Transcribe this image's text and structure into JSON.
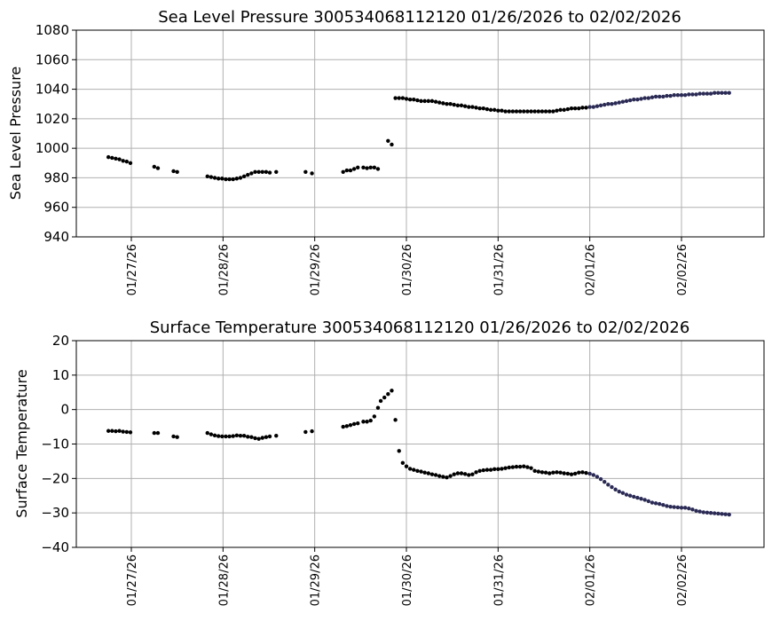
{
  "chart_data": [
    {
      "type": "scatter",
      "title": "Sea Level Pressure 300534068112120  01/26/2026 to 02/02/2026",
      "ylabel": "Sea Level Pressure",
      "xlabel": "",
      "x_unit": "days since 01/27/26 00:00",
      "xlim": [
        -0.6,
        6.9
      ],
      "ylim": [
        940,
        1080
      ],
      "yticks": [
        940,
        960,
        980,
        1000,
        1020,
        1040,
        1060,
        1080
      ],
      "xtick_labels": [
        "01/27/26",
        "01/28/26",
        "01/29/26",
        "01/30/26",
        "01/31/26",
        "02/01/26",
        "02/02/26"
      ],
      "grid": true,
      "marker_color": "#000000",
      "marker_color_late": "#2a2a55",
      "late_from_x": 5.0,
      "points": [
        [
          -0.25,
          994
        ],
        [
          -0.21,
          993.5
        ],
        [
          -0.17,
          993
        ],
        [
          -0.13,
          992.5
        ],
        [
          -0.09,
          991.5
        ],
        [
          -0.05,
          991
        ],
        [
          -0.01,
          990
        ],
        [
          0.25,
          987.5
        ],
        [
          0.29,
          986.5
        ],
        [
          0.46,
          984.5
        ],
        [
          0.5,
          984
        ],
        [
          0.83,
          981
        ],
        [
          0.87,
          980.5
        ],
        [
          0.91,
          980
        ],
        [
          0.95,
          979.5
        ],
        [
          0.99,
          979.5
        ],
        [
          1.03,
          979
        ],
        [
          1.07,
          979
        ],
        [
          1.11,
          979
        ],
        [
          1.15,
          979.5
        ],
        [
          1.19,
          980
        ],
        [
          1.23,
          981
        ],
        [
          1.27,
          982
        ],
        [
          1.31,
          983
        ],
        [
          1.35,
          984
        ],
        [
          1.39,
          984
        ],
        [
          1.43,
          984
        ],
        [
          1.47,
          984
        ],
        [
          1.51,
          983.5
        ],
        [
          1.58,
          984
        ],
        [
          1.9,
          984
        ],
        [
          1.97,
          983
        ],
        [
          2.31,
          984
        ],
        [
          2.35,
          985
        ],
        [
          2.39,
          985
        ],
        [
          2.43,
          986
        ],
        [
          2.47,
          987
        ],
        [
          2.53,
          987
        ],
        [
          2.57,
          986.5
        ],
        [
          2.61,
          987
        ],
        [
          2.65,
          987
        ],
        [
          2.69,
          986
        ],
        [
          2.8,
          1005
        ],
        [
          2.84,
          1002.5
        ],
        [
          2.88,
          1034
        ],
        [
          2.92,
          1034
        ],
        [
          2.96,
          1034
        ],
        [
          3.0,
          1033.5
        ],
        [
          3.04,
          1033
        ],
        [
          3.08,
          1033
        ],
        [
          3.12,
          1032.5
        ],
        [
          3.16,
          1032
        ],
        [
          3.2,
          1032
        ],
        [
          3.24,
          1032
        ],
        [
          3.28,
          1032
        ],
        [
          3.32,
          1031.5
        ],
        [
          3.36,
          1031
        ],
        [
          3.4,
          1030.5
        ],
        [
          3.44,
          1030
        ],
        [
          3.48,
          1030
        ],
        [
          3.52,
          1029.5
        ],
        [
          3.56,
          1029
        ],
        [
          3.6,
          1029
        ],
        [
          3.64,
          1028.5
        ],
        [
          3.68,
          1028
        ],
        [
          3.72,
          1028
        ],
        [
          3.76,
          1027.5
        ],
        [
          3.8,
          1027
        ],
        [
          3.84,
          1027
        ],
        [
          3.88,
          1026.5
        ],
        [
          3.92,
          1026
        ],
        [
          3.96,
          1026
        ],
        [
          4.0,
          1025.5
        ],
        [
          4.04,
          1025.5
        ],
        [
          4.08,
          1025
        ],
        [
          4.12,
          1025
        ],
        [
          4.16,
          1025
        ],
        [
          4.2,
          1025
        ],
        [
          4.24,
          1025
        ],
        [
          4.28,
          1025
        ],
        [
          4.32,
          1025
        ],
        [
          4.36,
          1025
        ],
        [
          4.4,
          1025
        ],
        [
          4.44,
          1025
        ],
        [
          4.48,
          1025
        ],
        [
          4.52,
          1025
        ],
        [
          4.56,
          1025
        ],
        [
          4.6,
          1025
        ],
        [
          4.64,
          1025.5
        ],
        [
          4.68,
          1026
        ],
        [
          4.72,
          1026
        ],
        [
          4.76,
          1026.5
        ],
        [
          4.8,
          1027
        ],
        [
          4.84,
          1027
        ],
        [
          4.88,
          1027
        ],
        [
          4.92,
          1027.5
        ],
        [
          4.96,
          1027.5
        ],
        [
          5.0,
          1028
        ],
        [
          5.04,
          1028
        ],
        [
          5.08,
          1028.5
        ],
        [
          5.12,
          1029
        ],
        [
          5.16,
          1029.5
        ],
        [
          5.2,
          1030
        ],
        [
          5.24,
          1030
        ],
        [
          5.28,
          1030.5
        ],
        [
          5.32,
          1031
        ],
        [
          5.36,
          1031.5
        ],
        [
          5.4,
          1032
        ],
        [
          5.44,
          1032.5
        ],
        [
          5.48,
          1033
        ],
        [
          5.52,
          1033
        ],
        [
          5.56,
          1033.5
        ],
        [
          5.6,
          1034
        ],
        [
          5.64,
          1034
        ],
        [
          5.68,
          1034.5
        ],
        [
          5.72,
          1035
        ],
        [
          5.76,
          1035
        ],
        [
          5.8,
          1035
        ],
        [
          5.84,
          1035.5
        ],
        [
          5.88,
          1035.5
        ],
        [
          5.92,
          1036
        ],
        [
          5.96,
          1036
        ],
        [
          6.0,
          1036
        ],
        [
          6.04,
          1036
        ],
        [
          6.08,
          1036.5
        ],
        [
          6.12,
          1036.5
        ],
        [
          6.16,
          1036.5
        ],
        [
          6.2,
          1037
        ],
        [
          6.24,
          1037
        ],
        [
          6.28,
          1037
        ],
        [
          6.32,
          1037
        ],
        [
          6.36,
          1037.5
        ],
        [
          6.4,
          1037.5
        ],
        [
          6.44,
          1037.5
        ],
        [
          6.48,
          1037.5
        ],
        [
          6.52,
          1037.5
        ]
      ]
    },
    {
      "type": "scatter",
      "title": "Surface Temperature 300534068112120  01/26/2026 to 02/02/2026",
      "ylabel": "Surface Temperature",
      "xlabel": "",
      "x_unit": "days since 01/27/26 00:00",
      "xlim": [
        -0.6,
        6.9
      ],
      "ylim": [
        -40,
        20
      ],
      "yticks": [
        -40,
        -30,
        -20,
        -10,
        0,
        10,
        20
      ],
      "xtick_labels": [
        "01/27/26",
        "01/28/26",
        "01/29/26",
        "01/30/26",
        "01/31/26",
        "02/01/26",
        "02/02/26"
      ],
      "grid": true,
      "marker_color": "#000000",
      "marker_color_late": "#2a2a55",
      "late_from_x": 5.0,
      "points": [
        [
          -0.25,
          -6.2
        ],
        [
          -0.21,
          -6.2
        ],
        [
          -0.17,
          -6.3
        ],
        [
          -0.13,
          -6.2
        ],
        [
          -0.09,
          -6.4
        ],
        [
          -0.05,
          -6.5
        ],
        [
          -0.01,
          -6.6
        ],
        [
          0.25,
          -6.8
        ],
        [
          0.29,
          -6.8
        ],
        [
          0.46,
          -7.8
        ],
        [
          0.5,
          -8.0
        ],
        [
          0.83,
          -6.8
        ],
        [
          0.87,
          -7.2
        ],
        [
          0.91,
          -7.5
        ],
        [
          0.95,
          -7.7
        ],
        [
          0.99,
          -7.8
        ],
        [
          1.03,
          -7.8
        ],
        [
          1.07,
          -7.8
        ],
        [
          1.11,
          -7.7
        ],
        [
          1.15,
          -7.5
        ],
        [
          1.19,
          -7.6
        ],
        [
          1.23,
          -7.6
        ],
        [
          1.27,
          -7.9
        ],
        [
          1.31,
          -8.0
        ],
        [
          1.35,
          -8.3
        ],
        [
          1.39,
          -8.5
        ],
        [
          1.43,
          -8.2
        ],
        [
          1.47,
          -8.0
        ],
        [
          1.51,
          -7.8
        ],
        [
          1.58,
          -7.6
        ],
        [
          1.9,
          -6.5
        ],
        [
          1.97,
          -6.3
        ],
        [
          2.31,
          -5.0
        ],
        [
          2.35,
          -4.8
        ],
        [
          2.39,
          -4.5
        ],
        [
          2.43,
          -4.2
        ],
        [
          2.47,
          -4.0
        ],
        [
          2.53,
          -3.5
        ],
        [
          2.57,
          -3.5
        ],
        [
          2.61,
          -3.2
        ],
        [
          2.65,
          -2.0
        ],
        [
          2.69,
          0.5
        ],
        [
          2.72,
          2.5
        ],
        [
          2.76,
          3.5
        ],
        [
          2.8,
          4.5
        ],
        [
          2.84,
          5.5
        ],
        [
          2.88,
          -3.0
        ],
        [
          2.92,
          -12.0
        ],
        [
          2.96,
          -15.5
        ],
        [
          3.0,
          -16.5
        ],
        [
          3.04,
          -17.2
        ],
        [
          3.08,
          -17.5
        ],
        [
          3.12,
          -17.8
        ],
        [
          3.16,
          -18.0
        ],
        [
          3.2,
          -18.3
        ],
        [
          3.24,
          -18.5
        ],
        [
          3.28,
          -18.8
        ],
        [
          3.32,
          -19.0
        ],
        [
          3.36,
          -19.3
        ],
        [
          3.4,
          -19.5
        ],
        [
          3.44,
          -19.7
        ],
        [
          3.48,
          -19.3
        ],
        [
          3.52,
          -18.8
        ],
        [
          3.56,
          -18.5
        ],
        [
          3.6,
          -18.5
        ],
        [
          3.64,
          -18.7
        ],
        [
          3.68,
          -19.0
        ],
        [
          3.72,
          -18.8
        ],
        [
          3.76,
          -18.2
        ],
        [
          3.8,
          -17.8
        ],
        [
          3.84,
          -17.6
        ],
        [
          3.88,
          -17.5
        ],
        [
          3.92,
          -17.5
        ],
        [
          3.96,
          -17.3
        ],
        [
          4.0,
          -17.3
        ],
        [
          4.04,
          -17.2
        ],
        [
          4.08,
          -17.0
        ],
        [
          4.12,
          -16.8
        ],
        [
          4.16,
          -16.7
        ],
        [
          4.2,
          -16.6
        ],
        [
          4.24,
          -16.6
        ],
        [
          4.28,
          -16.5
        ],
        [
          4.32,
          -16.7
        ],
        [
          4.36,
          -17.0
        ],
        [
          4.4,
          -17.8
        ],
        [
          4.44,
          -18.0
        ],
        [
          4.48,
          -18.2
        ],
        [
          4.52,
          -18.3
        ],
        [
          4.56,
          -18.5
        ],
        [
          4.6,
          -18.3
        ],
        [
          4.64,
          -18.2
        ],
        [
          4.68,
          -18.3
        ],
        [
          4.72,
          -18.5
        ],
        [
          4.76,
          -18.6
        ],
        [
          4.8,
          -18.8
        ],
        [
          4.84,
          -18.6
        ],
        [
          4.88,
          -18.3
        ],
        [
          4.92,
          -18.2
        ],
        [
          4.96,
          -18.4
        ],
        [
          5.0,
          -18.6
        ],
        [
          5.04,
          -19.0
        ],
        [
          5.08,
          -19.5
        ],
        [
          5.12,
          -20.2
        ],
        [
          5.16,
          -21.0
        ],
        [
          5.2,
          -21.8
        ],
        [
          5.24,
          -22.5
        ],
        [
          5.28,
          -23.2
        ],
        [
          5.32,
          -23.8
        ],
        [
          5.36,
          -24.2
        ],
        [
          5.4,
          -24.7
        ],
        [
          5.44,
          -25.0
        ],
        [
          5.48,
          -25.3
        ],
        [
          5.52,
          -25.6
        ],
        [
          5.56,
          -25.9
        ],
        [
          5.6,
          -26.2
        ],
        [
          5.64,
          -26.6
        ],
        [
          5.68,
          -27.0
        ],
        [
          5.72,
          -27.2
        ],
        [
          5.76,
          -27.4
        ],
        [
          5.8,
          -27.7
        ],
        [
          5.84,
          -28.0
        ],
        [
          5.88,
          -28.2
        ],
        [
          5.92,
          -28.3
        ],
        [
          5.96,
          -28.4
        ],
        [
          6.0,
          -28.5
        ],
        [
          6.04,
          -28.5
        ],
        [
          6.08,
          -28.7
        ],
        [
          6.12,
          -29.0
        ],
        [
          6.16,
          -29.4
        ],
        [
          6.2,
          -29.6
        ],
        [
          6.24,
          -29.8
        ],
        [
          6.28,
          -29.9
        ],
        [
          6.32,
          -30.0
        ],
        [
          6.36,
          -30.1
        ],
        [
          6.4,
          -30.2
        ],
        [
          6.44,
          -30.3
        ],
        [
          6.48,
          -30.4
        ],
        [
          6.52,
          -30.5
        ]
      ]
    }
  ]
}
